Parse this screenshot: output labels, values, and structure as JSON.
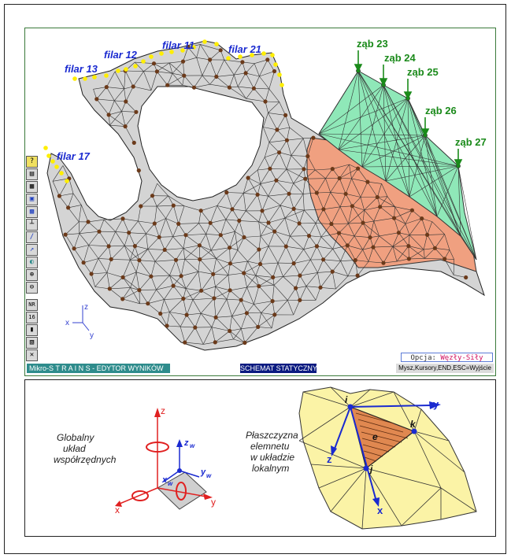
{
  "labels": {
    "filar_13": "filar 13",
    "filar_12": "filar 12",
    "filar_11": "filar 11",
    "filar_21": "filar 21",
    "filar_17": "filar 17",
    "zab_23": "ząb 23",
    "zab_24": "ząb 24",
    "zab_25": "ząb 25",
    "zab_26": "ząb 26",
    "zab_27": "ząb 27"
  },
  "axes_small": {
    "x": "x",
    "y": "y",
    "z": "z"
  },
  "toolbar": {
    "items": [
      "?",
      "print",
      "layers",
      "copy",
      "save",
      "axis",
      "zoom",
      "measure",
      "rotate",
      "zoom-in",
      "zoom-out"
    ],
    "nr_label": "NR",
    "value_label": "16",
    "icons": [
      "question-icon",
      "printer-icon",
      "layers-icon",
      "copy-icon",
      "save-icon",
      "axis-icon",
      "zoom-icon",
      "measure-icon",
      "rotate-icon",
      "zoom-in-icon",
      "zoom-out-icon",
      "chart-icon",
      "grid-icon",
      "close-icon"
    ]
  },
  "status": {
    "left": "Mikro-S T R A I N S - EDYTOR WYNIKÓW",
    "middle": "SCHEMAT STATYCZNY",
    "right": "Mysz,Kursory,END,ESC=Wyjście"
  },
  "option": {
    "prefix": "Opcja: ",
    "value": "Węzły-Siły"
  },
  "lower": {
    "global_text_1": "Globalny",
    "global_text_2": "układ",
    "global_text_3": "współrzędnych",
    "plane_text_1": "Płaszczyzna",
    "plane_text_2": "elemnetu",
    "plane_text_3": "w układzie",
    "plane_text_4": "lokalnym",
    "axes": {
      "x": "x",
      "y": "y",
      "z": "z",
      "zw": "z",
      "yw": "y",
      "xw": "x",
      "w": "w"
    },
    "local": {
      "i": "i",
      "j": "j",
      "k": "k",
      "e": "e",
      "x": "x",
      "y": "y",
      "z": "z"
    }
  },
  "colors": {
    "mesh_fill": "#d4d4d4",
    "node": "#6b3a1a",
    "support_node": "#ffee00",
    "tooth_fill": "#8fe8b8",
    "orange_fill": "#f0a080",
    "label_blue": "#1a2ad0",
    "label_green": "#1a8a1a"
  }
}
